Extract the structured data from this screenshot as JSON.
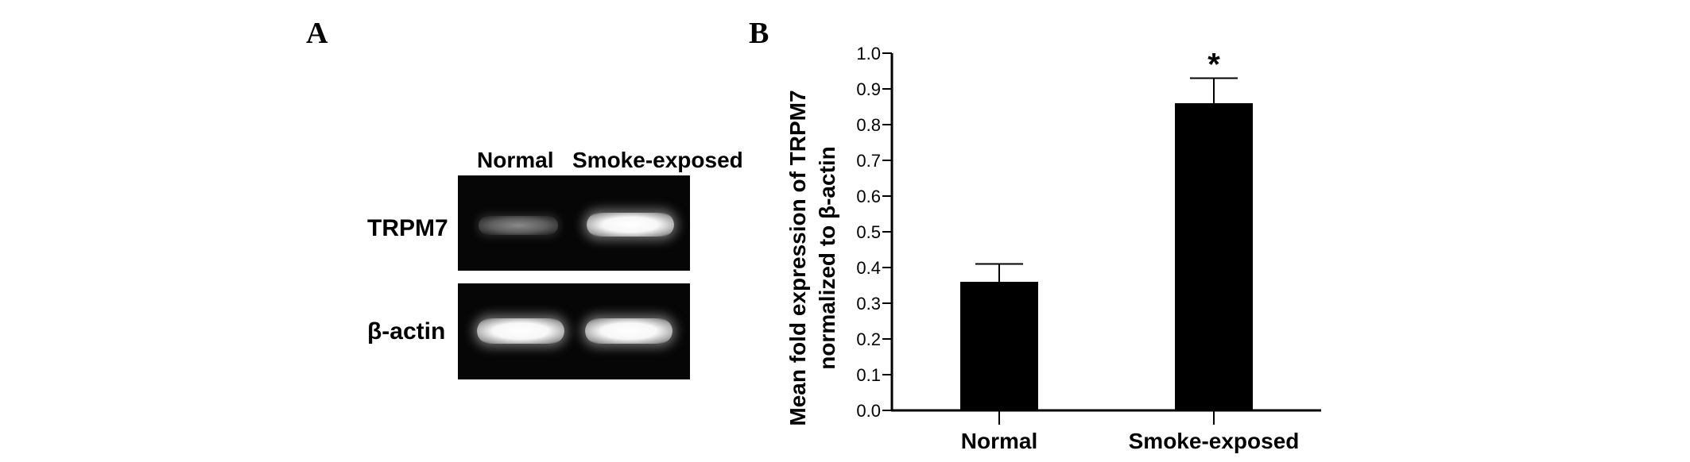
{
  "panel_a": {
    "letter": "A",
    "lane_labels": [
      "Normal",
      "Smoke-exposed"
    ],
    "rows": [
      {
        "label": "TRPM7",
        "bands": [
          "weak",
          "strong"
        ]
      },
      {
        "label": "β-actin",
        "bands": [
          "strong",
          "strong"
        ]
      }
    ]
  },
  "panel_b": {
    "letter": "B"
  },
  "chart_data": {
    "type": "bar",
    "categories": [
      "Normal",
      "Smoke-exposed"
    ],
    "values": [
      0.36,
      0.86
    ],
    "errors": [
      0.05,
      0.07
    ],
    "significance": [
      "",
      "*"
    ],
    "ylabel_line1": "Mean fold expression of TRPM7",
    "ylabel_line2": "normalized to β-actin",
    "xlabel": "",
    "ylim": [
      0,
      1.0
    ],
    "yticks": [
      "0.0",
      "0.1",
      "0.2",
      "0.3",
      "0.4",
      "0.5",
      "0.6",
      "0.7",
      "0.8",
      "0.9",
      "1.0"
    ],
    "bar_color": "#000000",
    "grid": false
  }
}
